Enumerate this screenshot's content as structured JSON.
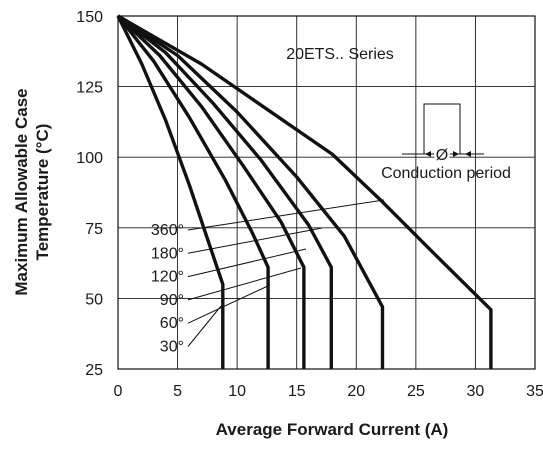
{
  "chart_data": {
    "type": "line",
    "xlabel": "Average Forward Current (A)",
    "ylabel_line1": "Maximum Allowable Case",
    "ylabel_line2": "Temperature (°C)",
    "xlim": [
      0,
      35
    ],
    "ylim": [
      25,
      150
    ],
    "x_ticks": [
      0,
      5,
      10,
      15,
      20,
      25,
      30,
      35
    ],
    "y_ticks": [
      25,
      50,
      75,
      100,
      125,
      150
    ],
    "grid": true,
    "series_label": "20ETS.. Series",
    "inset_symbol": "Ø",
    "inset_label": "Conduction period",
    "series": [
      {
        "name": "30°",
        "x": [
          0,
          2.0,
          4.0,
          6.0,
          7.6,
          8.8,
          8.8
        ],
        "y": [
          150,
          133,
          113,
          90,
          70,
          55,
          25
        ]
      },
      {
        "name": "60°",
        "x": [
          0,
          3.0,
          6.0,
          9.0,
          11.3,
          12.6,
          12.6
        ],
        "y": [
          150,
          134,
          114,
          92,
          73,
          61,
          25
        ]
      },
      {
        "name": "90°",
        "x": [
          0,
          3.5,
          7.0,
          10.5,
          13.7,
          15.6,
          15.6
        ],
        "y": [
          150,
          136,
          118,
          97,
          77,
          61,
          25
        ]
      },
      {
        "name": "120°",
        "x": [
          0,
          4.0,
          8.0,
          12.0,
          16.0,
          17.9,
          17.9
        ],
        "y": [
          150,
          137,
          119,
          99,
          76,
          61,
          25
        ]
      },
      {
        "name": "180°",
        "x": [
          0,
          5.0,
          10.0,
          15.0,
          19.0,
          22.2,
          22.2
        ],
        "y": [
          150,
          136,
          116,
          93,
          72,
          47,
          25
        ]
      },
      {
        "name": "360°",
        "x": [
          0,
          7.0,
          12.5,
          18.0,
          22.0,
          26.5,
          31.3,
          31.3
        ],
        "y": [
          150,
          133,
          117,
          101,
          85,
          66,
          46,
          25
        ]
      }
    ]
  }
}
